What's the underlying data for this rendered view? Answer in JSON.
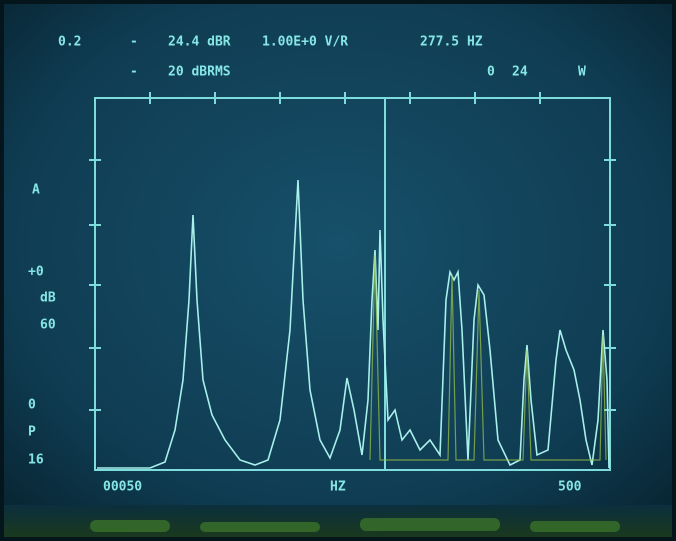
{
  "header": {
    "line1": [
      "0.2",
      "-",
      "24.4 dBR",
      "1.00E+0 V/R",
      "277.5 HZ"
    ],
    "line2": [
      "-",
      "20 dBRMS",
      "0",
      "24",
      "W"
    ]
  },
  "left_labels": [
    "A",
    "+0",
    "dB",
    "60",
    "0",
    "P",
    "16"
  ],
  "x_axis": {
    "start": "00050",
    "unit": "HZ",
    "end": "500"
  }
}
